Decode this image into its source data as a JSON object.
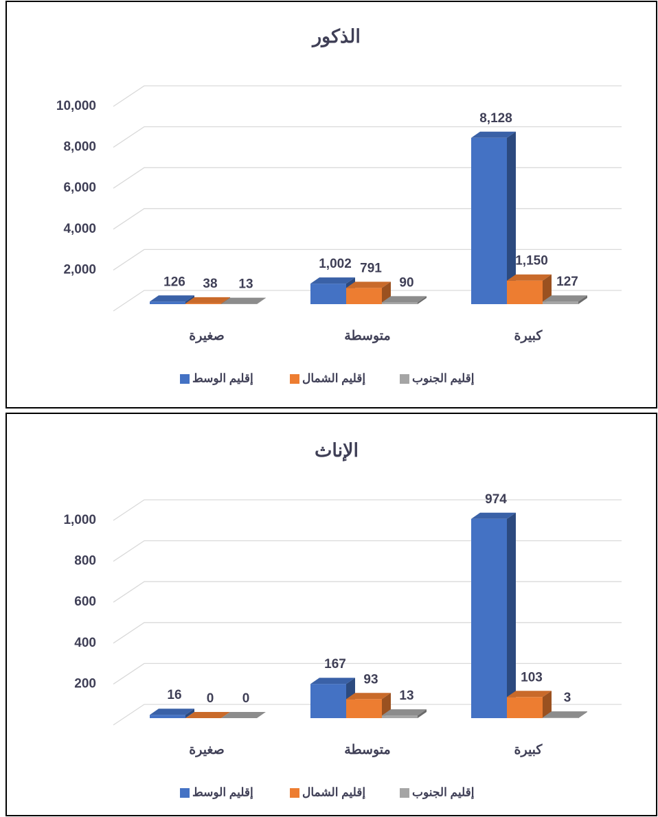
{
  "chart_data": [
    {
      "type": "bar3d",
      "title": "الذكور",
      "categories": [
        "صغيرة",
        "متوسطة",
        "كبيرة"
      ],
      "series": [
        {
          "name": "إقليم الوسط",
          "color": "#4472c4",
          "values": [
            126,
            1002,
            8128
          ],
          "value_labels": [
            "126",
            "1,002",
            "8,128"
          ]
        },
        {
          "name": "إقليم الشمال",
          "color": "#ed7d31",
          "values": [
            38,
            791,
            1150
          ],
          "value_labels": [
            "38",
            "791",
            "1,150"
          ]
        },
        {
          "name": "إقليم الجنوب",
          "color": "#a5a5a5",
          "values": [
            13,
            90,
            127
          ],
          "value_labels": [
            "13",
            "90",
            "127"
          ]
        }
      ],
      "ylim": [
        0,
        10000
      ],
      "yticks": [
        {
          "value": 2000,
          "label": "2,000"
        },
        {
          "value": 4000,
          "label": "4,000"
        },
        {
          "value": 6000,
          "label": "6,000"
        },
        {
          "value": 8000,
          "label": "8,000"
        },
        {
          "value": 10000,
          "label": "10,000"
        }
      ],
      "grid": true,
      "legend": "bottom"
    },
    {
      "type": "bar3d",
      "title": "الإناث",
      "categories": [
        "صغيرة",
        "متوسطة",
        "كبيرة"
      ],
      "series": [
        {
          "name": "إقليم الوسط",
          "color": "#4472c4",
          "values": [
            16,
            167,
            974
          ]
        },
        {
          "name": "إقليم الشمال",
          "color": "#ed7d31",
          "values": [
            0,
            93,
            103
          ]
        },
        {
          "name": "إقليم الجنوب",
          "color": "#a5a5a5",
          "values": [
            0,
            13,
            3
          ]
        }
      ],
      "ylim": [
        0,
        1000
      ],
      "yticks": [
        200,
        400,
        600,
        800,
        {
          "value": 1000,
          "label": "1,000"
        }
      ],
      "grid": true,
      "legend": "bottom"
    }
  ]
}
